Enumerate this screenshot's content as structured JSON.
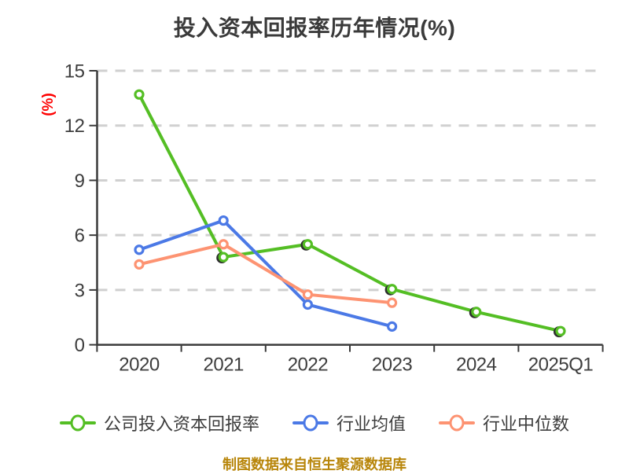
{
  "chart_data": {
    "type": "line",
    "title": "投入资本回报率历年情况(%)",
    "ylabel": "(%)",
    "caption": "制图数据来自恒生聚源数据库",
    "categories": [
      "2020",
      "2021",
      "2022",
      "2023",
      "2024",
      "2025Q1"
    ],
    "series": [
      {
        "name": "公司投入资本回报率",
        "color": "#54be24",
        "values": [
          13.7,
          4.8,
          5.5,
          3.05,
          1.8,
          0.75
        ]
      },
      {
        "name": "行业均值",
        "color": "#4b79e6",
        "values": [
          5.2,
          6.8,
          2.2,
          1.0,
          null,
          null
        ]
      },
      {
        "name": "行业中位数",
        "color": "#fd9372",
        "values": [
          4.4,
          5.5,
          2.75,
          2.3,
          null,
          null
        ]
      }
    ],
    "y_ticks": [
      0,
      3,
      6,
      9,
      12,
      15
    ],
    "ylim": [
      0,
      15
    ],
    "grid": "horizontal-dashed",
    "legend_position": "bottom"
  },
  "colors": {
    "title_text": "#3a3a3a",
    "axis": "#3a3a3a",
    "gridline": "#d0d0d0",
    "tick_text": "#3d3d3d",
    "ylabel_text": "#fe0000",
    "caption_text": "#b8860b",
    "marker_fill": "#ffffff",
    "background": "#ffffff"
  }
}
